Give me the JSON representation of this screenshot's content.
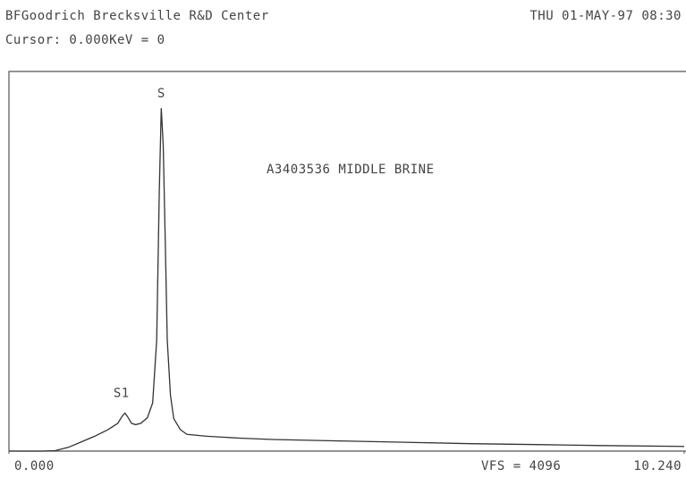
{
  "chart_data": {
    "type": "line",
    "header_left": "BFGoodrich Brecksville R&D Center",
    "header_right": "THU 01-MAY-97  08:30",
    "cursor": "Cursor: 0.000KeV = 0",
    "title": "A3403536 MIDDLE BRINE",
    "vfs_label": "VFS = 4096",
    "annotations": [
      "S",
      "S1"
    ],
    "x": [
      0,
      0.5,
      0.7,
      0.9,
      1.1,
      1.3,
      1.5,
      1.65,
      1.72,
      1.76,
      1.8,
      1.86,
      1.92,
      2.0,
      2.1,
      2.18,
      2.24,
      2.28,
      2.31,
      2.34,
      2.37,
      2.4,
      2.45,
      2.5,
      2.6,
      2.7,
      3.0,
      3.5,
      4.0,
      5.0,
      6.0,
      7.0,
      8.0,
      9.0,
      10.24
    ],
    "values": [
      0,
      0,
      5,
      40,
      100,
      160,
      230,
      300,
      380,
      410,
      370,
      300,
      285,
      300,
      360,
      520,
      1200,
      2800,
      3700,
      3300,
      2300,
      1200,
      600,
      350,
      230,
      180,
      160,
      140,
      125,
      110,
      95,
      80,
      70,
      60,
      50
    ],
    "color": "#333333",
    "xlim": [
      0,
      10.24
    ],
    "xticks": [
      {
        "value": 0,
        "label": "0.000"
      },
      {
        "value": 10.24,
        "label": "10.240"
      }
    ],
    "ylim": [
      0,
      4096
    ]
  }
}
